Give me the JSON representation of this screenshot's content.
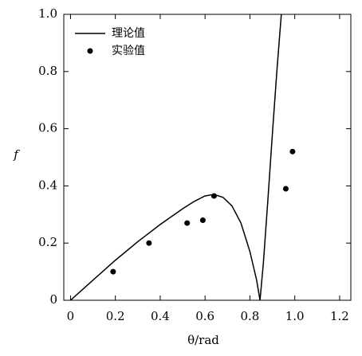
{
  "chart_data": {
    "type": "line",
    "xlabel": "θ/rad",
    "ylabel": "f",
    "xlim": [
      -0.03,
      1.25
    ],
    "ylim": [
      0,
      1
    ],
    "xticks": [
      0,
      0.2,
      0.4,
      0.6,
      0.8,
      {
        "value": 1,
        "label": "1.0"
      },
      1.2
    ],
    "yticks": [
      0,
      0.2,
      0.4,
      0.6,
      0.8,
      {
        "value": 1,
        "label": "1.0"
      }
    ],
    "legend": "upper left",
    "series": [
      {
        "name": "理论值",
        "type": "line",
        "color": "#000000",
        "x": [
          0,
          0.1,
          0.2,
          0.3,
          0.4,
          0.5,
          0.55,
          0.6,
          0.64,
          0.68,
          0.72,
          0.76,
          0.8,
          0.83,
          0.845,
          0.86,
          0.88,
          0.9,
          0.92,
          0.94
        ],
        "values": [
          0,
          0.07,
          0.14,
          0.205,
          0.265,
          0.32,
          0.345,
          0.365,
          0.37,
          0.36,
          0.33,
          0.27,
          0.17,
          0.07,
          0,
          0.13,
          0.35,
          0.58,
          0.8,
          1.0
        ]
      },
      {
        "name": "实验值",
        "type": "scatter",
        "color": "#000000",
        "x": [
          0.19,
          0.35,
          0.52,
          0.59,
          0.64,
          0.96,
          0.99
        ],
        "values": [
          0.1,
          0.2,
          0.27,
          0.28,
          0.365,
          0.39,
          0.52
        ]
      }
    ]
  }
}
